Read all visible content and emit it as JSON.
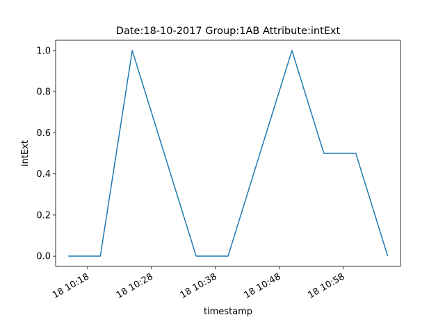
{
  "chart_data": {
    "type": "line",
    "title": "Date:18-10-2017  Group:1AB Attribute:intExt",
    "xlabel": "timestamp",
    "ylabel": "intExt",
    "x": [
      "18 10:15",
      "18 10:20",
      "18 10:25",
      "18 10:30",
      "18 10:35",
      "18 10:40",
      "18 10:45",
      "18 10:50",
      "18 10:55",
      "18 11:00",
      "18 11:05"
    ],
    "series": [
      {
        "name": "intExt",
        "color": "#1f77b4",
        "values": [
          0,
          0,
          1,
          0.5,
          0,
          0,
          0.5,
          1,
          0.5,
          0.5,
          0
        ]
      }
    ],
    "xlim": [
      "18 10:13",
      "18 11:07"
    ],
    "xticks": [
      "18 10:18",
      "18 10:28",
      "18 10:38",
      "18 10:48",
      "18 10:58"
    ],
    "ylim": [
      -0.05,
      1.05
    ],
    "yticks": [
      {
        "value": 0,
        "label": "0.0"
      },
      0.2,
      0.4,
      0.6,
      0.8,
      {
        "value": 1,
        "label": "1.0"
      }
    ],
    "grid": false
  }
}
